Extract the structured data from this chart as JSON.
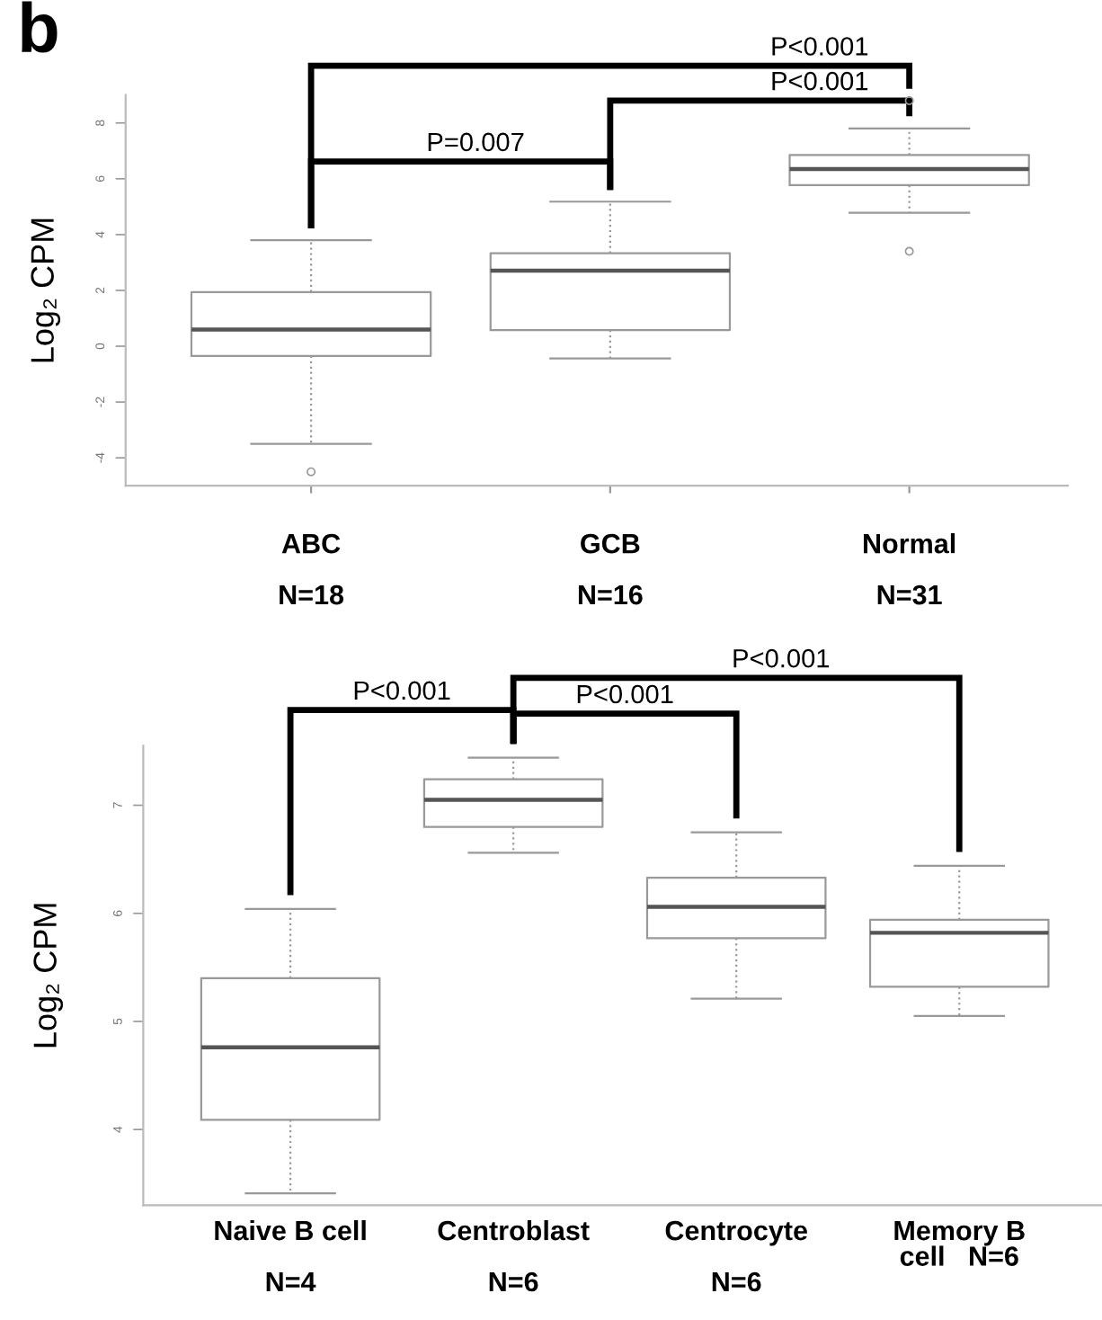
{
  "chart_data": [
    {
      "type": "box",
      "title": "b",
      "ylabel": "Log₂ CPM",
      "categories": [
        "ABC\n\nN=18",
        "GCB\n\nN=16",
        "Normal\n\nN=31"
      ],
      "boxes": [
        {
          "low": -3.5,
          "q1": -0.35,
          "median": 0.6,
          "q3": 1.94,
          "high": 3.8,
          "outliers": [
            -4.5
          ]
        },
        {
          "low": -0.44,
          "q1": 0.58,
          "median": 2.71,
          "q3": 3.33,
          "high": 5.18
        },
        {
          "low": 4.78,
          "q1": 5.77,
          "median": 6.35,
          "q3": 6.85,
          "high": 7.8,
          "outliers": [
            3.4,
            8.8
          ]
        }
      ],
      "ylim": [
        -5,
        9
      ],
      "yticks": [
        -4,
        -2,
        0,
        2,
        4,
        6,
        8
      ],
      "grid": false,
      "annotations": [
        "P=0.007",
        "P<0.001",
        "P<0.001"
      ]
    },
    {
      "type": "box",
      "ylabel": "Log₂ CPM",
      "categories": [
        "Naive B cell\n\nN=4",
        "Centroblast\n\nN=6",
        "Centrocyte\n\nN=6",
        "Memory B\ncell   N=6"
      ],
      "boxes": [
        {
          "low": 3.41,
          "q1": 4.09,
          "median": 4.76,
          "q3": 5.4,
          "high": 6.04
        },
        {
          "low": 6.56,
          "q1": 6.8,
          "median": 7.05,
          "q3": 7.24,
          "high": 7.44
        },
        {
          "low": 5.21,
          "q1": 5.77,
          "median": 6.06,
          "q3": 6.33,
          "high": 6.75
        },
        {
          "low": 5.05,
          "q1": 5.32,
          "median": 5.82,
          "q3": 5.94,
          "high": 6.44
        }
      ],
      "ylim": [
        3.3,
        7.55
      ],
      "yticks": [
        4,
        5,
        6,
        7
      ],
      "grid": false,
      "annotations": [
        "P<0.001",
        "P<0.001",
        "P<0.001"
      ]
    }
  ]
}
